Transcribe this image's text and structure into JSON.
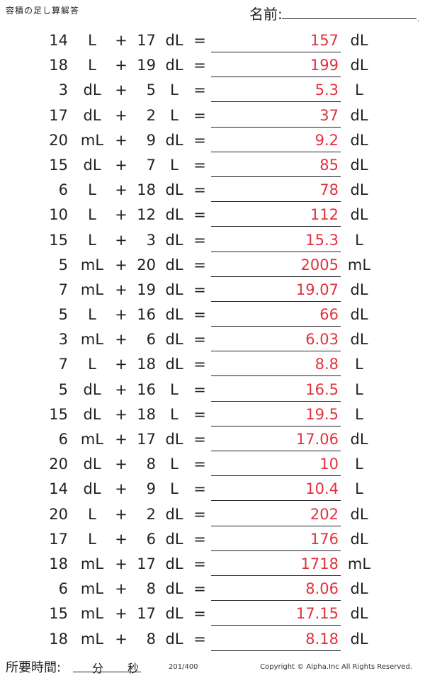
{
  "header": {
    "title": "容積の足し算解答",
    "name_label": "名前:",
    "name_dot": "."
  },
  "problems": [
    {
      "a": "14",
      "au": "L",
      "op": "+",
      "b": "17",
      "bu": "dL",
      "eq": "=",
      "ans": "157",
      "ru": "dL"
    },
    {
      "a": "18",
      "au": "L",
      "op": "+",
      "b": "19",
      "bu": "dL",
      "eq": "=",
      "ans": "199",
      "ru": "dL"
    },
    {
      "a": "3",
      "au": "dL",
      "op": "+",
      "b": "5",
      "bu": "L",
      "eq": "=",
      "ans": "5.3",
      "ru": "L"
    },
    {
      "a": "17",
      "au": "dL",
      "op": "+",
      "b": "2",
      "bu": "L",
      "eq": "=",
      "ans": "37",
      "ru": "dL"
    },
    {
      "a": "20",
      "au": "mL",
      "op": "+",
      "b": "9",
      "bu": "dL",
      "eq": "=",
      "ans": "9.2",
      "ru": "dL"
    },
    {
      "a": "15",
      "au": "dL",
      "op": "+",
      "b": "7",
      "bu": "L",
      "eq": "=",
      "ans": "85",
      "ru": "dL"
    },
    {
      "a": "6",
      "au": "L",
      "op": "+",
      "b": "18",
      "bu": "dL",
      "eq": "=",
      "ans": "78",
      "ru": "dL"
    },
    {
      "a": "10",
      "au": "L",
      "op": "+",
      "b": "12",
      "bu": "dL",
      "eq": "=",
      "ans": "112",
      "ru": "dL"
    },
    {
      "a": "15",
      "au": "L",
      "op": "+",
      "b": "3",
      "bu": "dL",
      "eq": "=",
      "ans": "15.3",
      "ru": "L"
    },
    {
      "a": "5",
      "au": "mL",
      "op": "+",
      "b": "20",
      "bu": "dL",
      "eq": "=",
      "ans": "2005",
      "ru": "mL"
    },
    {
      "a": "7",
      "au": "mL",
      "op": "+",
      "b": "19",
      "bu": "dL",
      "eq": "=",
      "ans": "19.07",
      "ru": "dL"
    },
    {
      "a": "5",
      "au": "L",
      "op": "+",
      "b": "16",
      "bu": "dL",
      "eq": "=",
      "ans": "66",
      "ru": "dL"
    },
    {
      "a": "3",
      "au": "mL",
      "op": "+",
      "b": "6",
      "bu": "dL",
      "eq": "=",
      "ans": "6.03",
      "ru": "dL"
    },
    {
      "a": "7",
      "au": "L",
      "op": "+",
      "b": "18",
      "bu": "dL",
      "eq": "=",
      "ans": "8.8",
      "ru": "L"
    },
    {
      "a": "5",
      "au": "dL",
      "op": "+",
      "b": "16",
      "bu": "L",
      "eq": "=",
      "ans": "16.5",
      "ru": "L"
    },
    {
      "a": "15",
      "au": "dL",
      "op": "+",
      "b": "18",
      "bu": "L",
      "eq": "=",
      "ans": "19.5",
      "ru": "L"
    },
    {
      "a": "6",
      "au": "mL",
      "op": "+",
      "b": "17",
      "bu": "dL",
      "eq": "=",
      "ans": "17.06",
      "ru": "dL"
    },
    {
      "a": "20",
      "au": "dL",
      "op": "+",
      "b": "8",
      "bu": "L",
      "eq": "=",
      "ans": "10",
      "ru": "L"
    },
    {
      "a": "14",
      "au": "dL",
      "op": "+",
      "b": "9",
      "bu": "L",
      "eq": "=",
      "ans": "10.4",
      "ru": "L"
    },
    {
      "a": "20",
      "au": "L",
      "op": "+",
      "b": "2",
      "bu": "dL",
      "eq": "=",
      "ans": "202",
      "ru": "dL"
    },
    {
      "a": "17",
      "au": "L",
      "op": "+",
      "b": "6",
      "bu": "dL",
      "eq": "=",
      "ans": "176",
      "ru": "dL"
    },
    {
      "a": "18",
      "au": "mL",
      "op": "+",
      "b": "17",
      "bu": "dL",
      "eq": "=",
      "ans": "1718",
      "ru": "mL"
    },
    {
      "a": "6",
      "au": "mL",
      "op": "+",
      "b": "8",
      "bu": "dL",
      "eq": "=",
      "ans": "8.06",
      "ru": "dL"
    },
    {
      "a": "15",
      "au": "mL",
      "op": "+",
      "b": "17",
      "bu": "dL",
      "eq": "=",
      "ans": "17.15",
      "ru": "dL"
    },
    {
      "a": "18",
      "au": "mL",
      "op": "+",
      "b": "8",
      "bu": "dL",
      "eq": "=",
      "ans": "8.18",
      "ru": "dL"
    }
  ],
  "footer": {
    "time_label": "所要時間:",
    "minutes_label": "分",
    "seconds_label": "秒",
    "page_number": "201/400",
    "copyright": "Copyright © Alpha.Inc All Rights Reserved."
  },
  "colors": {
    "answer": "#e0323c",
    "text": "#222222"
  }
}
